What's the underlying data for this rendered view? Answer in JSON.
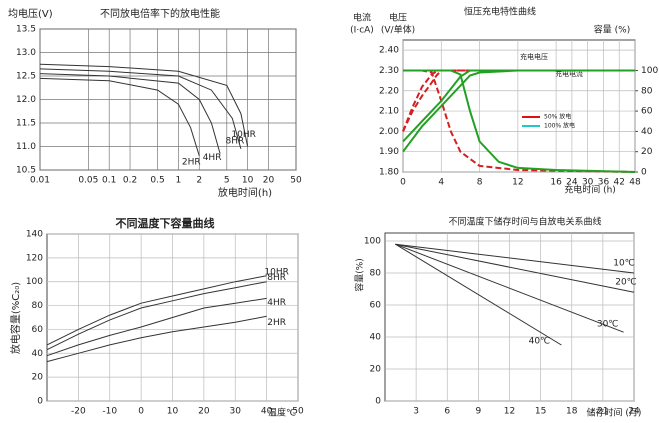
{
  "chart_data": [
    {
      "type": "line",
      "title": "不同放电倍率下的放电性能",
      "y_label": "均电压(V)",
      "x_label": "放电时间(h)",
      "xscale": "log",
      "xlim": [
        0.01,
        50
      ],
      "xticks": [
        0.01,
        0.05,
        0.1,
        0.2,
        0.5,
        1,
        2,
        5,
        10,
        20,
        50
      ],
      "ylim": [
        10.5,
        13.5
      ],
      "yticks": [
        10.5,
        {
          "value": 11,
          "label": "11.0"
        },
        11.5,
        {
          "value": 12,
          "label": "12.0"
        },
        12.5,
        {
          "value": 13,
          "label": "13.0"
        },
        13.5
      ],
      "grid": true,
      "series": [
        {
          "name": "2HR",
          "color": "#333",
          "x": [
            0.01,
            0.1,
            0.5,
            1,
            1.5,
            2
          ],
          "values": [
            12.45,
            12.4,
            12.2,
            11.9,
            11.4,
            10.8
          ]
        },
        {
          "name": "4HR",
          "color": "#333",
          "x": [
            0.01,
            0.1,
            1,
            2,
            3,
            4
          ],
          "values": [
            12.55,
            12.5,
            12.35,
            12.0,
            11.5,
            10.85
          ]
        },
        {
          "name": "8HR",
          "color": "#333",
          "x": [
            0.01,
            0.1,
            1,
            3,
            6,
            8
          ],
          "values": [
            12.65,
            12.6,
            12.5,
            12.2,
            11.6,
            10.95
          ]
        },
        {
          "name": "10HR",
          "color": "#333",
          "x": [
            0.01,
            0.1,
            1,
            5,
            8,
            10
          ],
          "values": [
            12.75,
            12.7,
            12.6,
            12.3,
            11.7,
            11.0
          ]
        }
      ]
    },
    {
      "type": "line",
      "title": "恒压充电特性曲线",
      "y_label": "电压",
      "y_unit": "(V/单体)",
      "y_outer_label": "电流",
      "y_outer_unit": "(I·cA)",
      "y2_label": "容量 (%)",
      "x_label": "充电时间 (h)",
      "xscale": "ticks",
      "xlim": [
        0,
        48
      ],
      "xticks": [
        0,
        4,
        8,
        12,
        16,
        24,
        30,
        36,
        42,
        48
      ],
      "ylim": [
        1.8,
        2.45
      ],
      "yticks": [
        {
          "value": 1.8,
          "label": "1.80"
        },
        {
          "value": 1.9,
          "label": "1.90"
        },
        {
          "value": 2.0,
          "label": "2.00"
        },
        {
          "value": 2.1,
          "label": "2.10"
        },
        {
          "value": 2.2,
          "label": "2.20"
        },
        {
          "value": 2.3,
          "label": "2.30"
        },
        {
          "value": 2.4,
          "label": "2.40"
        }
      ],
      "y2lim": [
        0,
        130
      ],
      "y2ticks": [
        0,
        20,
        40,
        60,
        80,
        100
      ],
      "grid": true,
      "annotations": [
        "充电电压",
        "充电电流"
      ],
      "legend": [
        {
          "name": "50% 放电",
          "color": "#e01010"
        },
        {
          "name": "100% 放电",
          "color": "#20c8c8"
        }
      ],
      "series": [
        {
          "color": "#d42020",
          "dash": true,
          "x": [
            0,
            1,
            2,
            3,
            3.6,
            48
          ],
          "values": [
            2.0,
            2.12,
            2.22,
            2.28,
            2.3,
            2.3
          ]
        },
        {
          "color": "#d42020",
          "dash": true,
          "x": [
            0,
            2,
            3,
            4,
            5,
            6,
            8,
            12,
            48
          ],
          "values": [
            2.3,
            2.3,
            2.29,
            2.15,
            2.0,
            1.9,
            1.83,
            1.81,
            1.8
          ]
        },
        {
          "color": "#d42020",
          "dash": true,
          "axis": "y2",
          "x": [
            0,
            1,
            2,
            3,
            3.5,
            4,
            8,
            48
          ],
          "values": [
            40,
            60,
            75,
            88,
            95,
            100,
            100,
            100
          ]
        },
        {
          "color": "#22a022",
          "x": [
            0,
            2,
            4,
            6,
            7,
            48
          ],
          "values": [
            1.95,
            2.05,
            2.15,
            2.27,
            2.3,
            2.3
          ]
        },
        {
          "color": "#22a022",
          "x": [
            0,
            5,
            6,
            7,
            8,
            10,
            12,
            16,
            48
          ],
          "values": [
            2.3,
            2.3,
            2.28,
            2.1,
            1.95,
            1.85,
            1.82,
            1.81,
            1.8
          ]
        },
        {
          "color": "#22a022",
          "axis": "y2",
          "x": [
            0,
            2,
            4,
            6,
            7,
            8,
            12,
            48
          ],
          "values": [
            20,
            45,
            65,
            85,
            95,
            98,
            100,
            100
          ]
        }
      ]
    },
    {
      "type": "line",
      "title": "不同温度下容量曲线",
      "y_label": "放电容量(%C₂₀)",
      "x_label": "温度℃",
      "xlim": [
        -30,
        50
      ],
      "xticks": [
        -20,
        -10,
        0,
        10,
        20,
        30,
        40,
        50
      ],
      "ylim": [
        0,
        140
      ],
      "yticks": [
        0,
        20,
        40,
        60,
        80,
        100,
        120,
        140
      ],
      "grid": true,
      "series": [
        {
          "name": "10HR",
          "color": "#333",
          "x": [
            -30,
            -20,
            -10,
            0,
            10,
            20,
            30,
            40
          ],
          "values": [
            47,
            60,
            72,
            82,
            88,
            94,
            100,
            105
          ]
        },
        {
          "name": "8HR",
          "color": "#333",
          "x": [
            -30,
            -20,
            -10,
            0,
            10,
            20,
            30,
            40
          ],
          "values": [
            43,
            56,
            68,
            78,
            84,
            90,
            95,
            100
          ]
        },
        {
          "name": "4HR",
          "color": "#333",
          "x": [
            -30,
            -20,
            -10,
            0,
            10,
            20,
            30,
            40
          ],
          "values": [
            38,
            47,
            55,
            62,
            70,
            78,
            82,
            86
          ]
        },
        {
          "name": "2HR",
          "color": "#333",
          "x": [
            -30,
            -20,
            -10,
            0,
            10,
            20,
            30,
            40
          ],
          "values": [
            33,
            40,
            47,
            53,
            58,
            62,
            66,
            71
          ]
        }
      ]
    },
    {
      "type": "line",
      "title": "不同温度下储存时间与自放电关系曲线",
      "y_label": "容量(%)",
      "x_label": "储存时间 (月)",
      "xlim": [
        0,
        24
      ],
      "xticks": [
        3,
        6,
        9,
        12,
        15,
        18,
        21,
        24
      ],
      "ylim": [
        0,
        105
      ],
      "yticks": [
        0,
        20,
        40,
        60,
        80,
        100
      ],
      "grid": true,
      "series": [
        {
          "name": "10℃",
          "color": "#333",
          "x": [
            1,
            24
          ],
          "values": [
            98,
            80
          ]
        },
        {
          "name": "20℃",
          "color": "#333",
          "x": [
            1,
            24
          ],
          "values": [
            98,
            68
          ]
        },
        {
          "name": "30℃",
          "color": "#333",
          "x": [
            1,
            23
          ],
          "values": [
            98,
            43
          ]
        },
        {
          "name": "40℃",
          "color": "#333",
          "x": [
            1,
            17
          ],
          "values": [
            98,
            35
          ]
        }
      ]
    }
  ]
}
